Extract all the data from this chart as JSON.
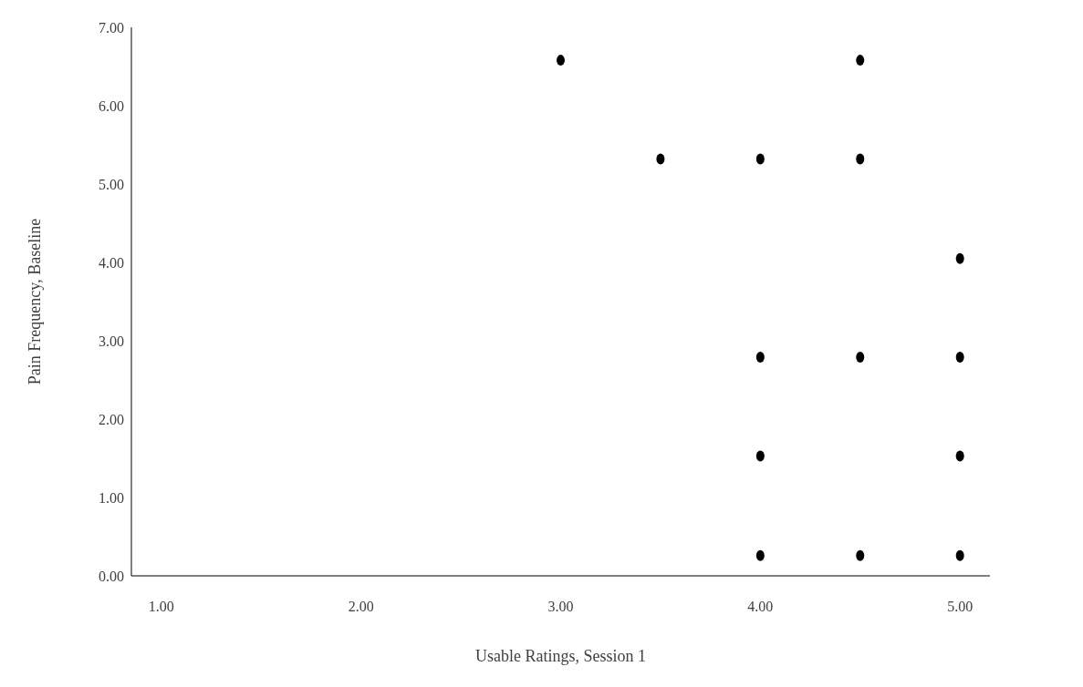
{
  "chart_data": {
    "type": "scatter",
    "xlabel": "Usable Ratings, Session 1",
    "ylabel": "Pain Frequency, Baseline",
    "x": [
      3,
      4.5,
      3.5,
      4,
      4.5,
      5,
      4,
      4.5,
      5,
      4,
      5,
      4,
      4.5,
      5
    ],
    "values": [
      6.58,
      6.58,
      5.32,
      5.32,
      5.32,
      4.05,
      2.79,
      2.79,
      2.79,
      1.53,
      1.53,
      0.26,
      0.26,
      0.26
    ],
    "color": "#000000",
    "marker": "circle",
    "xlim": [
      0.85,
      5.15
    ],
    "xticks": [
      {
        "value": 1,
        "label": "1.00"
      },
      {
        "value": 2,
        "label": "2.00"
      },
      {
        "value": 3,
        "label": "3.00"
      },
      {
        "value": 4,
        "label": "4.00"
      },
      {
        "value": 5,
        "label": "5.00"
      }
    ],
    "ylim": [
      0,
      7
    ],
    "yticks": [
      {
        "value": 0,
        "label": "0.00"
      },
      {
        "value": 1,
        "label": "1.00"
      },
      {
        "value": 2,
        "label": "2.00"
      },
      {
        "value": 3,
        "label": "3.00"
      },
      {
        "value": 4,
        "label": "4.00"
      },
      {
        "value": 5,
        "label": "5.00"
      },
      {
        "value": 6,
        "label": "6.00"
      },
      {
        "value": 7,
        "label": "7.00"
      }
    ]
  }
}
